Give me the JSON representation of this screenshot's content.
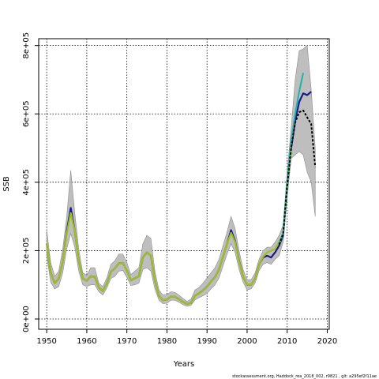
{
  "chart_data": {
    "type": "line",
    "xlabel": "Years",
    "ylabel": "SSB",
    "xlim": [
      1948,
      2020.5
    ],
    "ylim": [
      -30000,
      820000
    ],
    "x_ticks": [
      1950,
      1960,
      1970,
      1980,
      1990,
      2000,
      2010,
      2020
    ],
    "x_tick_labels": [
      "1950",
      "1960",
      "1970",
      "1980",
      "1990",
      "2000",
      "2010",
      "2020"
    ],
    "y_ticks": [
      0,
      200000,
      400000,
      600000,
      800000
    ],
    "y_tick_labels": [
      "0e+00",
      "2e+05",
      "4e+05",
      "6e+05",
      "8e+05"
    ],
    "grid": true,
    "footer": "stockassessment.org, Haddock_rea_2018_002, r9821 , git: a295ef2f11ae",
    "colors": {
      "band": "#bebebe",
      "band_edge": "#8c8c8c",
      "main": "#1a1a8c",
      "overlay": "#9fbf1e",
      "retro_teal": "#20b2aa",
      "retro_black": "#000000"
    },
    "band": {
      "x": [
        1950,
        1951,
        1952,
        1953,
        1954,
        1955,
        1956,
        1957,
        1958,
        1959,
        1960,
        1961,
        1962,
        1963,
        1964,
        1965,
        1966,
        1967,
        1968,
        1969,
        1970,
        1971,
        1972,
        1973,
        1974,
        1975,
        1976,
        1977,
        1978,
        1979,
        1980,
        1981,
        1982,
        1983,
        1984,
        1985,
        1986,
        1987,
        1988,
        1989,
        1990,
        1991,
        1992,
        1993,
        1994,
        1995,
        1996,
        1997,
        1998,
        1999,
        2000,
        2001,
        2002,
        2003,
        2004,
        2005,
        2006,
        2007,
        2008,
        2009,
        2010,
        2011,
        2012,
        2013,
        2014,
        2015,
        2016,
        2017
      ],
      "upper": [
        260000,
        165000,
        125000,
        140000,
        205000,
        300000,
        435000,
        310000,
        205000,
        135000,
        128000,
        150000,
        150000,
        105000,
        95000,
        120000,
        160000,
        170000,
        190000,
        190000,
        165000,
        130000,
        140000,
        150000,
        220000,
        245000,
        235000,
        140000,
        85000,
        70000,
        72000,
        80000,
        78000,
        70000,
        60000,
        52000,
        58000,
        85000,
        92000,
        105000,
        120000,
        135000,
        150000,
        175000,
        215000,
        255000,
        300000,
        265000,
        200000,
        145000,
        115000,
        115000,
        135000,
        175000,
        200000,
        210000,
        210000,
        225000,
        245000,
        275000,
        430000,
        560000,
        700000,
        785000,
        790000,
        800000,
        670000,
        500000
      ],
      "lower": [
        185000,
        108000,
        88000,
        95000,
        135000,
        205000,
        250000,
        210000,
        140000,
        100000,
        95000,
        100000,
        100000,
        80000,
        70000,
        90000,
        118000,
        125000,
        140000,
        142000,
        122000,
        98000,
        100000,
        105000,
        145000,
        150000,
        140000,
        88000,
        55000,
        45000,
        46000,
        55000,
        55000,
        49000,
        42000,
        37000,
        40000,
        56000,
        62000,
        68000,
        75000,
        88000,
        100000,
        120000,
        155000,
        190000,
        220000,
        195000,
        145000,
        108000,
        85000,
        88000,
        105000,
        142000,
        160000,
        165000,
        160000,
        175000,
        185000,
        225000,
        355000,
        470000,
        480000,
        490000,
        480000,
        430000,
        400000,
        300000
      ]
    },
    "series": [
      {
        "x": [
          1950,
          1951,
          1952,
          1953,
          1954,
          1955,
          1956,
          1957,
          1958,
          1959,
          1960,
          1961,
          1962,
          1963,
          1964,
          1965,
          1966,
          1967,
          1968,
          1969,
          1970,
          1971,
          1972,
          1973,
          1974,
          1975,
          1976,
          1977,
          1978,
          1979,
          1980,
          1981,
          1982,
          1983,
          1984,
          1985,
          1986,
          1987,
          1988,
          1989,
          1990,
          1991,
          1992,
          1993,
          1994,
          1995,
          1996,
          1997,
          1998,
          1999,
          2000,
          2001,
          2002,
          2003,
          2004,
          2005,
          2006,
          2007,
          2008,
          2009,
          2010,
          2011,
          2012,
          2013,
          2014,
          2015,
          2016
        ],
        "values": [
          220000,
          135000,
          105000,
          118000,
          168000,
          255000,
          325000,
          258000,
          170000,
          118000,
          112000,
          125000,
          124000,
          92000,
          82000,
          104000,
          138000,
          148000,
          163000,
          164000,
          142000,
          113000,
          119000,
          125000,
          180000,
          195000,
          185000,
          112000,
          68000,
          55000,
          57000,
          66000,
          65000,
          58000,
          50000,
          44000,
          47000,
          68000,
          75000,
          84000,
          95000,
          110000,
          123000,
          145000,
          183000,
          220000,
          260000,
          228000,
          170000,
          124000,
          100000,
          100000,
          118000,
          160000,
          180000,
          185000,
          180000,
          195000,
          215000,
          245000,
          390000,
          500000,
          580000,
          635000,
          660000,
          655000,
          665000
        ]
      },
      {
        "x": [
          1950,
          1951,
          1952,
          1953,
          1954,
          1955,
          1956,
          1957,
          1958,
          1959,
          1960,
          1961,
          1962,
          1963,
          1964,
          1965,
          1966,
          1967,
          1968,
          1969,
          1970,
          1971,
          1972,
          1973,
          1974,
          1975,
          1976,
          1977,
          1978,
          1979,
          1980,
          1981,
          1982,
          1983,
          1984,
          1985,
          1986,
          1987,
          1988,
          1989,
          1990,
          1991,
          1992,
          1993,
          1994,
          1995,
          1996,
          1997,
          1998,
          1999,
          2000,
          2001,
          2002,
          2003,
          2004,
          2005,
          2006,
          2007,
          2008,
          2009,
          2010,
          2011
        ],
        "values": [
          220000,
          135000,
          105000,
          118000,
          168000,
          250000,
          310000,
          258000,
          170000,
          118000,
          112000,
          125000,
          124000,
          92000,
          82000,
          104000,
          138000,
          148000,
          163000,
          164000,
          142000,
          113000,
          119000,
          125000,
          180000,
          195000,
          185000,
          112000,
          68000,
          55000,
          57000,
          66000,
          65000,
          58000,
          50000,
          44000,
          47000,
          68000,
          75000,
          84000,
          95000,
          110000,
          123000,
          145000,
          183000,
          220000,
          252000,
          225000,
          168000,
          124000,
          100000,
          100000,
          118000,
          160000,
          182000,
          195000,
          200000,
          205000,
          225000,
          250000,
          390000,
          500000
        ]
      },
      {
        "x": [
          2008,
          2009,
          2010,
          2011,
          2012,
          2013,
          2014
        ],
        "values": [
          218000,
          250000,
          400000,
          520000,
          600000,
          665000,
          720000
        ]
      },
      {
        "x": [
          2008,
          2009,
          2010,
          2011,
          2012,
          2013,
          2014,
          2015,
          2016,
          2017
        ],
        "values": [
          218000,
          250000,
          390000,
          500000,
          575000,
          605000,
          610000,
          590000,
          570000,
          445000
        ]
      }
    ]
  }
}
